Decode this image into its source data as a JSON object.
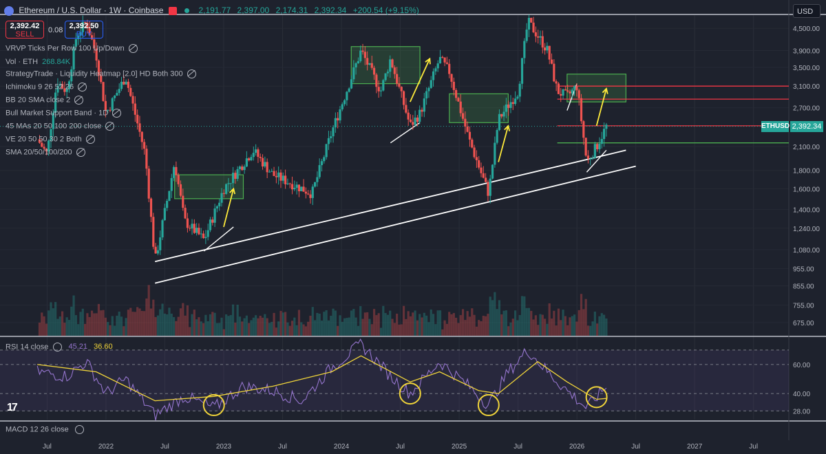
{
  "header": {
    "title": "Ethereum / U.S. Dollar · 1W · Coinbase",
    "ohlc": [
      "2,191.77",
      "2,397.00",
      "2,174.31",
      "2,392.34",
      "+200.54 (+9.15%)"
    ]
  },
  "trade": {
    "sell_price": "2,392.42",
    "sell_label": "SELL",
    "spread": "0.08",
    "buy_price": "2,392.50",
    "buy_label": "BUY"
  },
  "currency_select": "USD",
  "indicators": [
    {
      "label": "VRVP Ticks Per Row 100 Up/Down"
    },
    {
      "label": "Vol · ETH",
      "value": "268.84K"
    },
    {
      "label": "StrategyTrade · Liquidity Heatmap [2.0] HD Both 300"
    },
    {
      "label": "Ichimoku 9 26 52 26"
    },
    {
      "label": "BB 20 SMA close 2"
    },
    {
      "label": "Bull Market Support Band · 1D"
    },
    {
      "label": "45 MAs 20 50 100 200 close"
    },
    {
      "label": "VE 20 50 50 30 2 Both"
    },
    {
      "label": "SMA 20/50/100/200"
    }
  ],
  "price_axis": [
    "4,500.00",
    "3,900.00",
    "3,500.00",
    "3,100.00",
    "2,700.00",
    "2,100.00",
    "1,800.00",
    "1,600.00",
    "1,400.00",
    "1,240.00",
    "1,080.00",
    "955.00",
    "855.00",
    "755.00",
    "675.00"
  ],
  "current_price": {
    "symbol": "ETHUSD",
    "value": "2,392.34"
  },
  "rsi": {
    "label": "RSI 14 close",
    "rsi_value": "45.21",
    "ma_value": "36.60",
    "axis": [
      "60.00",
      "40.00",
      "28.00"
    ]
  },
  "macd": {
    "label": "MACD 12 26 close"
  },
  "time_axis": [
    "Jul",
    "2022",
    "Jul",
    "2023",
    "Jul",
    "2024",
    "Jul",
    "2025",
    "Jul",
    "2026",
    "Jul",
    "2027",
    "Jul"
  ],
  "colors": {
    "background": "#1e222d",
    "up": "#26a69a",
    "down": "#ef5350",
    "rsi": "#9575cd",
    "rsi_ma": "#f0d43a",
    "zone": "#4caf50",
    "trend": "#ffffff",
    "resistance": "#f23645",
    "arrow": "#ffeb3b"
  },
  "chart_data": {
    "type": "candlestick",
    "symbol": "ETHUSD",
    "scale": "log",
    "ylim": [
      620,
      4900
    ],
    "x": [
      "2021-07",
      "2022-01",
      "2022-07",
      "2023-01",
      "2023-07",
      "2024-01",
      "2024-07",
      "2025-01",
      "2025-07",
      "2026-01",
      "2026-07",
      "2027-01",
      "2027-07"
    ],
    "price_path": [
      [
        "2021-06",
        2200
      ],
      [
        "2021-07",
        2000
      ],
      [
        "2021-08",
        3200
      ],
      [
        "2021-09",
        3000
      ],
      [
        "2021-10",
        4300
      ],
      [
        "2021-11",
        4700
      ],
      [
        "2021-12",
        3800
      ],
      [
        "2022-01",
        2600
      ],
      [
        "2022-03",
        3300
      ],
      [
        "2022-05",
        2000
      ],
      [
        "2022-06",
        1000
      ],
      [
        "2022-08",
        1900
      ],
      [
        "2022-09",
        1300
      ],
      [
        "2022-11",
        1150
      ],
      [
        "2023-01",
        1600
      ],
      [
        "2023-04",
        2050
      ],
      [
        "2023-06",
        1750
      ],
      [
        "2023-08",
        1650
      ],
      [
        "2023-10",
        1550
      ],
      [
        "2023-12",
        2300
      ],
      [
        "2024-03",
        3900
      ],
      [
        "2024-05",
        3000
      ],
      [
        "2024-06",
        3700
      ],
      [
        "2024-08",
        2400
      ],
      [
        "2024-09",
        2600
      ],
      [
        "2024-11",
        3700
      ],
      [
        "2024-12",
        3400
      ],
      [
        "2025-02",
        2200
      ],
      [
        "2025-04",
        1550
      ],
      [
        "2025-05",
        2500
      ],
      [
        "2025-07",
        3000
      ],
      [
        "2025-08",
        4700
      ],
      [
        "2025-09",
        4300
      ],
      [
        "2025-10",
        3900
      ],
      [
        "2025-11",
        3000
      ],
      [
        "2025-12",
        2900
      ],
      [
        "2026-01",
        3100
      ],
      [
        "2026-02",
        1900
      ],
      [
        "2026-03",
        2100
      ],
      [
        "2026-04",
        2392
      ]
    ],
    "zones": [
      {
        "from": "2022-08",
        "to": "2023-03",
        "low": 1500,
        "high": 1750
      },
      {
        "from": "2024-02",
        "to": "2024-09",
        "low": 3150,
        "high": 4000
      },
      {
        "from": "2024-12",
        "to": "2025-06",
        "low": 2450,
        "high": 2950
      },
      {
        "from": "2025-12",
        "to": "2026-06",
        "low": 2800,
        "high": 3350
      }
    ],
    "resistance_levels": [
      3100,
      2850,
      2400,
      2150
    ],
    "rsi": {
      "ylim": [
        22,
        78
      ],
      "levels": [
        70,
        60,
        40,
        28
      ],
      "values": [
        [
          "2021-06",
          55
        ],
        [
          "2021-09",
          52
        ],
        [
          "2021-11",
          62
        ],
        [
          "2022-01",
          40
        ],
        [
          "2022-03",
          50
        ],
        [
          "2022-06",
          25
        ],
        [
          "2022-09",
          38
        ],
        [
          "2022-12",
          30
        ],
        [
          "2023-03",
          45
        ],
        [
          "2023-06",
          42
        ],
        [
          "2023-09",
          35
        ],
        [
          "2023-12",
          58
        ],
        [
          "2024-03",
          74
        ],
        [
          "2024-06",
          52
        ],
        [
          "2024-08",
          40
        ],
        [
          "2024-11",
          62
        ],
        [
          "2025-02",
          45
        ],
        [
          "2025-04",
          32
        ],
        [
          "2025-06",
          55
        ],
        [
          "2025-08",
          70
        ],
        [
          "2025-10",
          55
        ],
        [
          "2025-12",
          42
        ],
        [
          "2026-02",
          30
        ],
        [
          "2026-04",
          45
        ]
      ],
      "ma": [
        [
          "2021-06",
          60
        ],
        [
          "2021-12",
          55
        ],
        [
          "2022-06",
          35
        ],
        [
          "2022-12",
          38
        ],
        [
          "2023-06",
          45
        ],
        [
          "2023-12",
          55
        ],
        [
          "2024-03",
          66
        ],
        [
          "2024-08",
          48
        ],
        [
          "2024-11",
          55
        ],
        [
          "2025-03",
          42
        ],
        [
          "2025-05",
          40
        ],
        [
          "2025-09",
          62
        ],
        [
          "2025-12",
          48
        ],
        [
          "2026-03",
          36
        ],
        [
          "2026-04",
          36.6
        ]
      ],
      "highlights": [
        "2022-12",
        "2024-08",
        "2025-04",
        "2026-03"
      ]
    }
  }
}
